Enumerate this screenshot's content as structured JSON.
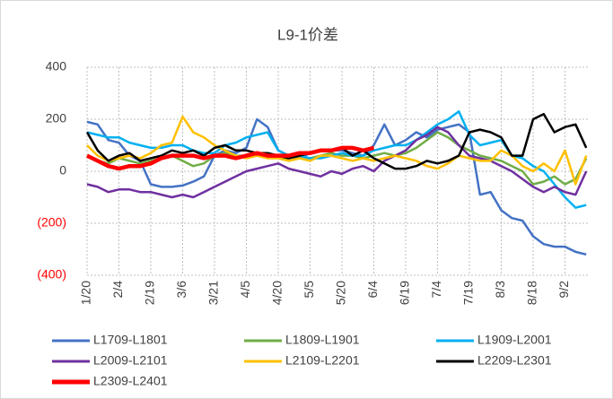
{
  "chart_data": {
    "type": "line",
    "title": "L9-1价差",
    "categories": [
      "1/20",
      null,
      null,
      "2/4",
      null,
      null,
      "2/19",
      null,
      null,
      "3/6",
      null,
      null,
      "3/21",
      null,
      null,
      "4/5",
      null,
      null,
      "4/20",
      null,
      null,
      "5/5",
      null,
      null,
      "5/20",
      null,
      null,
      "6/4",
      null,
      null,
      "6/19",
      null,
      null,
      "7/4",
      null,
      null,
      "7/19",
      null,
      null,
      "8/3",
      null,
      null,
      "8/18",
      null,
      null,
      "9/2",
      null,
      null
    ],
    "series": [
      {
        "name": "L1709-L1801",
        "color": "#4472c4",
        "values": [
          190,
          180,
          120,
          110,
          60,
          40,
          -50,
          -60,
          -60,
          -55,
          -40,
          -20,
          60,
          80,
          70,
          90,
          200,
          170,
          80,
          60,
          50,
          70,
          80,
          80,
          80,
          70,
          60,
          100,
          180,
          100,
          120,
          150,
          130,
          160,
          170,
          180,
          150,
          -90,
          -80,
          -150,
          -180,
          -190,
          -250,
          -280,
          -290,
          -290,
          -310,
          -320
        ]
      },
      {
        "name": "L1809-L1901",
        "color": "#70ad47",
        "values": [
          60,
          40,
          30,
          50,
          40,
          30,
          40,
          50,
          60,
          40,
          20,
          30,
          60,
          70,
          60,
          60,
          70,
          70,
          60,
          40,
          50,
          50,
          60,
          70,
          60,
          60,
          50,
          60,
          70,
          60,
          70,
          90,
          120,
          150,
          130,
          100,
          80,
          60,
          50,
          40,
          20,
          0,
          -50,
          -40,
          -20,
          -50,
          -30,
          50
        ]
      },
      {
        "name": "L1909-L2001",
        "color": "#00b0f0",
        "values": [
          150,
          140,
          130,
          130,
          110,
          100,
          90,
          90,
          100,
          100,
          80,
          70,
          70,
          100,
          110,
          130,
          140,
          150,
          80,
          60,
          60,
          50,
          50,
          60,
          70,
          60,
          60,
          80,
          90,
          100,
          100,
          120,
          150,
          180,
          200,
          230,
          140,
          100,
          110,
          120,
          60,
          50,
          20,
          0,
          -50,
          -100,
          -140,
          -130
        ]
      },
      {
        "name": "L2009-L2101",
        "color": "#7030a0",
        "values": [
          -50,
          -60,
          -80,
          -70,
          -70,
          -80,
          -80,
          -90,
          -100,
          -90,
          -100,
          -80,
          -60,
          -40,
          -20,
          0,
          10,
          20,
          30,
          10,
          0,
          -10,
          -20,
          0,
          -10,
          10,
          20,
          0,
          40,
          60,
          80,
          120,
          140,
          170,
          150,
          100,
          60,
          50,
          40,
          20,
          0,
          -30,
          -60,
          -80,
          -60,
          -80,
          -90,
          0
        ]
      },
      {
        "name": "L2109-L2201",
        "color": "#ffc000",
        "values": [
          100,
          60,
          40,
          50,
          60,
          50,
          70,
          100,
          110,
          210,
          150,
          130,
          100,
          80,
          60,
          50,
          60,
          50,
          50,
          40,
          50,
          40,
          60,
          60,
          50,
          40,
          50,
          40,
          50,
          60,
          50,
          40,
          20,
          10,
          30,
          60,
          50,
          40,
          40,
          80,
          60,
          20,
          0,
          30,
          0,
          80,
          -50,
          60
        ]
      },
      {
        "name": "L2209-L2301",
        "color": "#000000",
        "values": [
          150,
          80,
          40,
          60,
          70,
          40,
          50,
          60,
          80,
          70,
          80,
          60,
          90,
          100,
          80,
          80,
          70,
          70,
          60,
          50,
          60,
          70,
          80,
          80,
          90,
          60,
          80,
          50,
          30,
          10,
          10,
          20,
          40,
          30,
          40,
          60,
          150,
          160,
          150,
          130,
          60,
          60,
          200,
          220,
          150,
          170,
          180,
          90
        ]
      },
      {
        "name": "L2309-L2401",
        "color": "#ff0000",
        "values": [
          60,
          40,
          20,
          10,
          20,
          20,
          30,
          50,
          60,
          60,
          60,
          50,
          60,
          60,
          50,
          60,
          70,
          60,
          60,
          60,
          70,
          70,
          80,
          80,
          90,
          90,
          80,
          90,
          null,
          null,
          null,
          null,
          null,
          null,
          null,
          null,
          null,
          null,
          null,
          null,
          null,
          null,
          null,
          null,
          null,
          null,
          null,
          null
        ]
      }
    ],
    "ylim": [
      -400,
      400
    ],
    "yticks": [
      400,
      200,
      0,
      {
        "value": -200,
        "label": "(200)"
      },
      {
        "value": -400,
        "label": "(400)"
      }
    ],
    "negative_tick_color": "#ff0000",
    "grid": true,
    "legend": "bottom"
  }
}
